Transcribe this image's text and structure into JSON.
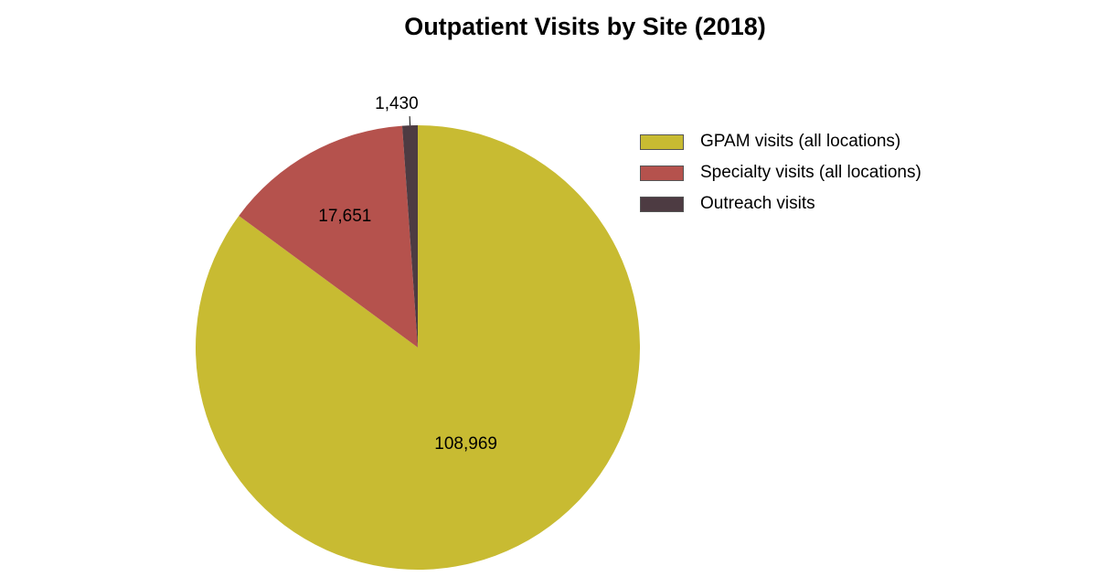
{
  "chart_data": {
    "type": "pie",
    "title": "Outpatient Visits by Site (2018)",
    "legend_position": "right",
    "slices": [
      {
        "name": "GPAM visits (all locations)",
        "value": 108969,
        "label": "108,969",
        "color": "#c8bb32"
      },
      {
        "name": "Specialty visits (all locations)",
        "value": 17651,
        "label": "17,651",
        "color": "#b5524d"
      },
      {
        "name": "Outreach visits",
        "value": 1430,
        "label": "1,430",
        "color": "#4d3b42"
      }
    ]
  }
}
